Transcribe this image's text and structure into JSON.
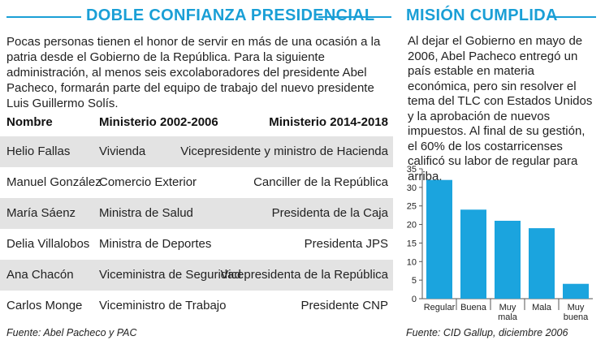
{
  "left": {
    "title": "DOBLE CONFIANZA PRESIDENCIAL",
    "intro": "Pocas personas tienen el honor de servir en más de una ocasión a la patria desde el Gobierno de la República. Para la siguiente administración, al menos seis excolaboradores del presidente Abel Pacheco, formarán parte del equipo de trabajo del nuevo presidente Luis Guillermo Solís.",
    "headers": [
      "Nombre",
      "Ministerio 2002-2006",
      "Ministerio 2014-2018"
    ],
    "rows": [
      [
        "Helio Fallas",
        "Vivienda",
        "Vicepresidente y ministro de Hacienda"
      ],
      [
        "Manuel González",
        "Comercio Exterior",
        "Canciller de la República"
      ],
      [
        "María Sáenz",
        "Ministra de Salud",
        "Presidenta de la Caja"
      ],
      [
        "Delia Villalobos",
        "Ministra de Deportes",
        "Presidenta JPS"
      ],
      [
        "Ana Chacón",
        "Viceministra de Seguridad",
        "Vicepresidenta de la República"
      ],
      [
        "Carlos Monge",
        "Viceministro de Trabajo",
        "Presidente CNP"
      ]
    ],
    "source": "Fuente: Abel Pacheco y PAC"
  },
  "right": {
    "title": "MISIÓN CUMPLIDA",
    "text": "Al dejar el Gobierno en mayo de 2006, Abel Pacheco entregó un país estable en materia económica, pero sin resolver el tema del TLC con Estados Unidos y la aprobación de nuevos impuestos. Al final de su gestión, el 60% de los costarricenses calificó su labor de regular para arriba.",
    "source": "Fuente: CID Gallup, diciembre 2006"
  },
  "colors": {
    "accent": "#1a9fd6",
    "bar": "#1ba4de",
    "row_shade": "#e3e3e3"
  },
  "chart_data": {
    "type": "bar",
    "categories": [
      "Regular",
      "Buena",
      "Muy mala",
      "Mala",
      "Muy buena"
    ],
    "category_lines": [
      [
        "Regular"
      ],
      [
        "Buena"
      ],
      [
        "Muy",
        "mala"
      ],
      [
        "Mala"
      ],
      [
        "Muy",
        "buena"
      ]
    ],
    "values": [
      32,
      24,
      21,
      19,
      4
    ],
    "ylim": [
      0,
      35
    ],
    "yticks": [
      0,
      5,
      10,
      15,
      20,
      25,
      30,
      35
    ],
    "grid": false
  }
}
